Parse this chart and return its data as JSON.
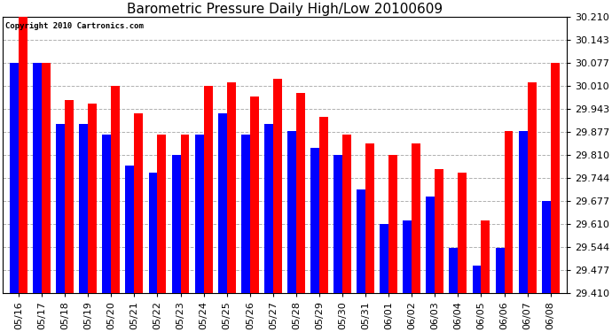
{
  "title": "Barometric Pressure Daily High/Low 20100609",
  "copyright": "Copyright 2010 Cartronics.com",
  "dates": [
    "05/16",
    "05/17",
    "05/18",
    "05/19",
    "05/20",
    "05/21",
    "05/22",
    "05/23",
    "05/24",
    "05/25",
    "05/26",
    "05/27",
    "05/28",
    "05/29",
    "05/30",
    "05/31",
    "06/01",
    "06/02",
    "06/03",
    "06/04",
    "06/05",
    "06/06",
    "06/07",
    "06/08"
  ],
  "highs": [
    30.21,
    30.077,
    29.97,
    29.96,
    30.01,
    29.93,
    29.87,
    29.87,
    30.01,
    30.02,
    29.98,
    30.03,
    29.99,
    29.92,
    29.87,
    29.843,
    29.81,
    29.843,
    29.77,
    29.76,
    29.62,
    29.88,
    30.02,
    30.077
  ],
  "lows": [
    30.077,
    30.077,
    29.9,
    29.9,
    29.87,
    29.78,
    29.76,
    29.81,
    29.87,
    29.93,
    29.87,
    29.9,
    29.88,
    29.83,
    29.81,
    29.71,
    29.61,
    29.62,
    29.69,
    29.54,
    29.49,
    29.54,
    29.88,
    29.677
  ],
  "ylim_min": 29.41,
  "ylim_max": 30.21,
  "ytick_values": [
    29.41,
    29.477,
    29.544,
    29.61,
    29.677,
    29.744,
    29.81,
    29.877,
    29.943,
    30.01,
    30.077,
    30.143,
    30.21
  ],
  "bar_width": 0.38,
  "high_color": "#ff0000",
  "low_color": "#0000ff",
  "bg_color": "#ffffff",
  "grid_color": "#b0b0b0",
  "title_fontsize": 11,
  "tick_fontsize": 8,
  "copyright_fontsize": 6.5
}
